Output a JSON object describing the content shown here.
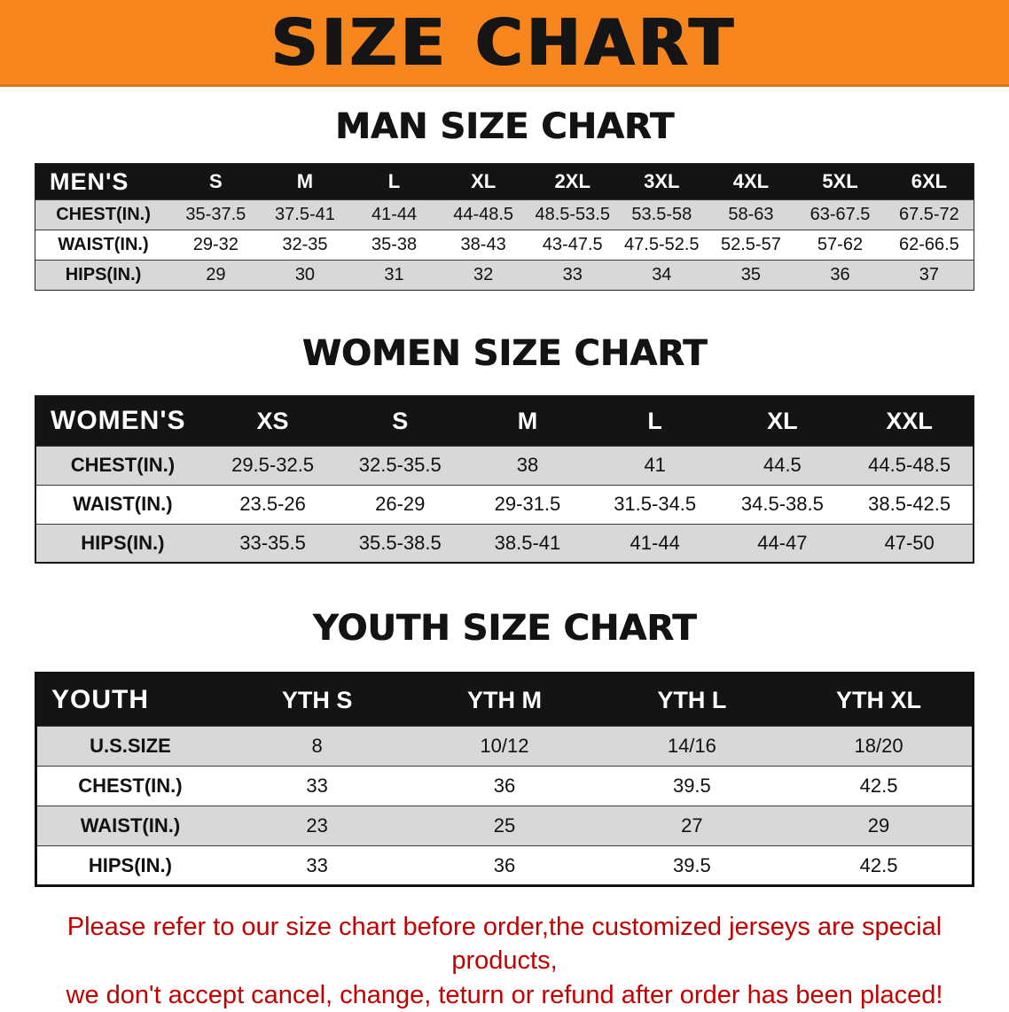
{
  "title": "SIZE CHART",
  "colors": {
    "banner_orange": "#f6861d",
    "header_black": "#141414",
    "row_gray": "#d8d8d8",
    "notice_red": "#c30000"
  },
  "sections": [
    {
      "heading": "MAN SIZE CHART",
      "table": {
        "corner": "MEN'S",
        "columns": [
          "S",
          "M",
          "L",
          "XL",
          "2XL",
          "3XL",
          "4XL",
          "5XL",
          "6XL"
        ],
        "rows": [
          {
            "label": "CHEST(IN.)",
            "values": [
              "35-37.5",
              "37.5-41",
              "41-44",
              "44-48.5",
              "48.5-53.5",
              "53.5-58",
              "58-63",
              "63-67.5",
              "67.5-72"
            ]
          },
          {
            "label": "WAIST(IN.)",
            "values": [
              "29-32",
              "32-35",
              "35-38",
              "38-43",
              "43-47.5",
              "47.5-52.5",
              "52.5-57",
              "57-62",
              "62-66.5"
            ]
          },
          {
            "label": "HIPS(IN.)",
            "values": [
              "29",
              "30",
              "31",
              "32",
              "33",
              "34",
              "35",
              "36",
              "37"
            ]
          }
        ]
      }
    },
    {
      "heading": "WOMEN SIZE CHART",
      "table": {
        "corner": "WOMEN'S",
        "columns": [
          "XS",
          "S",
          "M",
          "L",
          "XL",
          "XXL"
        ],
        "rows": [
          {
            "label": "CHEST(IN.)",
            "values": [
              "29.5-32.5",
              "32.5-35.5",
              "38",
              "41",
              "44.5",
              "44.5-48.5"
            ]
          },
          {
            "label": "WAIST(IN.)",
            "values": [
              "23.5-26",
              "26-29",
              "29-31.5",
              "31.5-34.5",
              "34.5-38.5",
              "38.5-42.5"
            ]
          },
          {
            "label": "HIPS(IN.)",
            "values": [
              "33-35.5",
              "35.5-38.5",
              "38.5-41",
              "41-44",
              "44-47",
              "47-50"
            ]
          }
        ]
      }
    },
    {
      "heading": "YOUTH SIZE CHART",
      "table": {
        "corner": "YOUTH",
        "columns": [
          "YTH S",
          "YTH M",
          "YTH L",
          "YTH XL"
        ],
        "rows": [
          {
            "label": "U.S.SIZE",
            "values": [
              "8",
              "10/12",
              "14/16",
              "18/20"
            ]
          },
          {
            "label": "CHEST(IN.)",
            "values": [
              "33",
              "36",
              "39.5",
              "42.5"
            ]
          },
          {
            "label": "WAIST(IN.)",
            "values": [
              "23",
              "25",
              "27",
              "29"
            ]
          },
          {
            "label": "HIPS(IN.)",
            "values": [
              "33",
              "36",
              "39.5",
              "42.5"
            ]
          }
        ]
      }
    }
  ],
  "notice": {
    "line1": "Please refer to our size chart before order,the customized jerseys are special products,",
    "line2": "we don't accept cancel, change, teturn or refund after order has been placed!"
  }
}
